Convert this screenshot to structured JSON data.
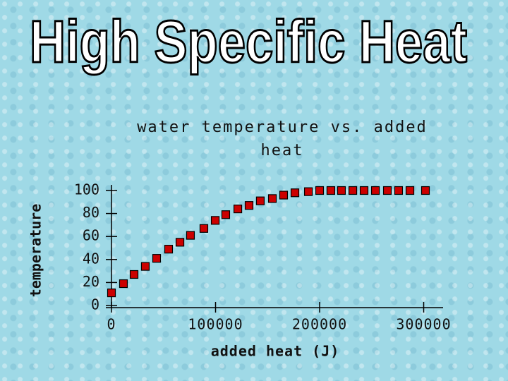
{
  "slide_title": "High Specific Heat",
  "chart_data": {
    "type": "scatter",
    "title": "water temperature vs. added heat",
    "x_label": "added heat (J)",
    "y_label": "temperature",
    "x": [
      0,
      11500,
      21700,
      32500,
      43400,
      54900,
      65800,
      75900,
      88800,
      99700,
      109800,
      121400,
      132200,
      143000,
      154600,
      165400,
      176300,
      189200,
      200000,
      210800,
      221000,
      231900,
      242700,
      253600,
      265100,
      275900,
      286800,
      301700
    ],
    "values": [
      11,
      19,
      27,
      34,
      41,
      49,
      55,
      61,
      67,
      74,
      79,
      84,
      87,
      91,
      93,
      96,
      98,
      99,
      100,
      100,
      100,
      100,
      100,
      100,
      100,
      100,
      100,
      100
    ],
    "color": "#cc0000",
    "xlim": [
      0,
      320000
    ],
    "ylim": [
      0,
      100
    ],
    "xticks": [
      0,
      100000,
      200000,
      300000
    ],
    "yticks": [
      0,
      20,
      40,
      60,
      80,
      100
    ],
    "grid": false
  }
}
